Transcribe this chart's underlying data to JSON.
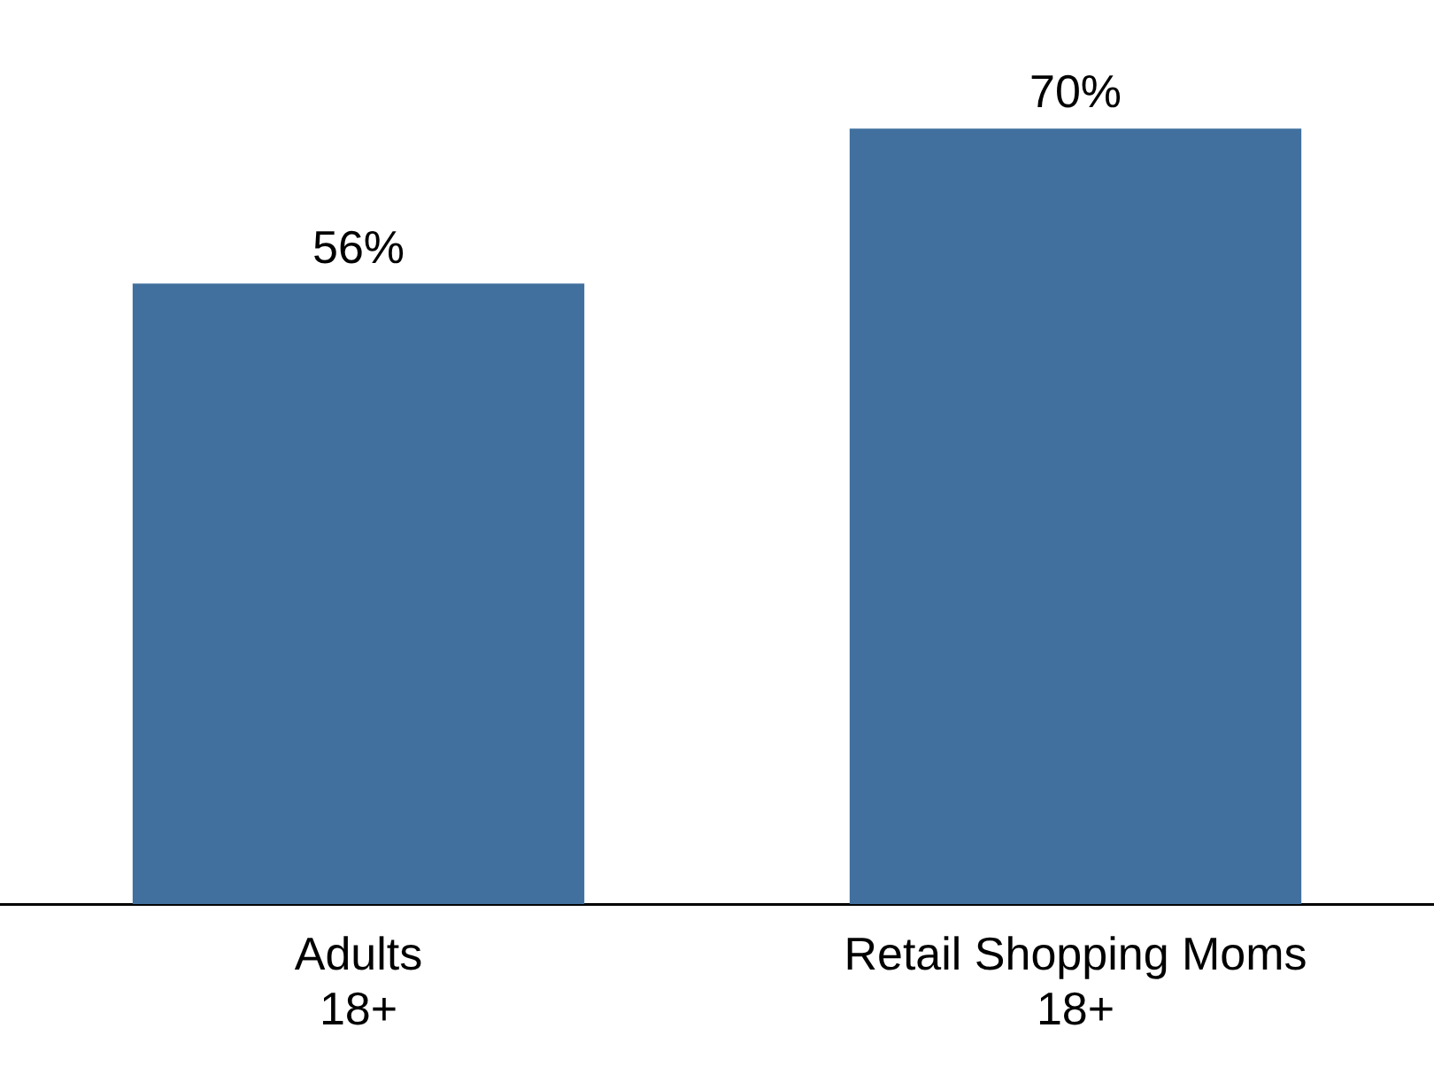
{
  "chart_data": {
    "type": "bar",
    "categories": [
      "Adults\n18+",
      "Retail Shopping Moms\n18+"
    ],
    "values": [
      56,
      70
    ],
    "value_labels": [
      "56%",
      "70%"
    ],
    "color": "#41709f",
    "grid": false,
    "legend": false,
    "tick_labels": "x"
  }
}
